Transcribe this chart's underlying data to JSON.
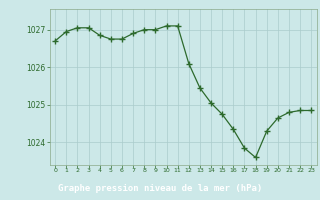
{
  "x": [
    0,
    1,
    2,
    3,
    4,
    5,
    6,
    7,
    8,
    9,
    10,
    11,
    12,
    13,
    14,
    15,
    16,
    17,
    18,
    19,
    20,
    21,
    22,
    23
  ],
  "y": [
    1026.7,
    1026.95,
    1027.05,
    1027.05,
    1026.85,
    1026.75,
    1026.75,
    1026.9,
    1027.0,
    1027.0,
    1027.1,
    1027.1,
    1026.1,
    1025.45,
    1025.05,
    1024.75,
    1024.35,
    1023.85,
    1023.6,
    1024.3,
    1024.65,
    1024.8,
    1024.85,
    1024.85
  ],
  "xlim": [
    -0.5,
    23.5
  ],
  "ylim": [
    1023.4,
    1027.55
  ],
  "yticks": [
    1024,
    1025,
    1026,
    1027
  ],
  "xticks": [
    0,
    1,
    2,
    3,
    4,
    5,
    6,
    7,
    8,
    9,
    10,
    11,
    12,
    13,
    14,
    15,
    16,
    17,
    18,
    19,
    20,
    21,
    22,
    23
  ],
  "line_color": "#2d6a2d",
  "marker_color": "#2d6a2d",
  "bg_color": "#cce8e8",
  "grid_color": "#aacccc",
  "xlabel": "Graphe pression niveau de la mer (hPa)",
  "xlabel_color": "#ffffff",
  "tick_color": "#2d6a2d",
  "bottom_bar_color": "#3a7a3a",
  "spine_color": "#8aaa8a"
}
